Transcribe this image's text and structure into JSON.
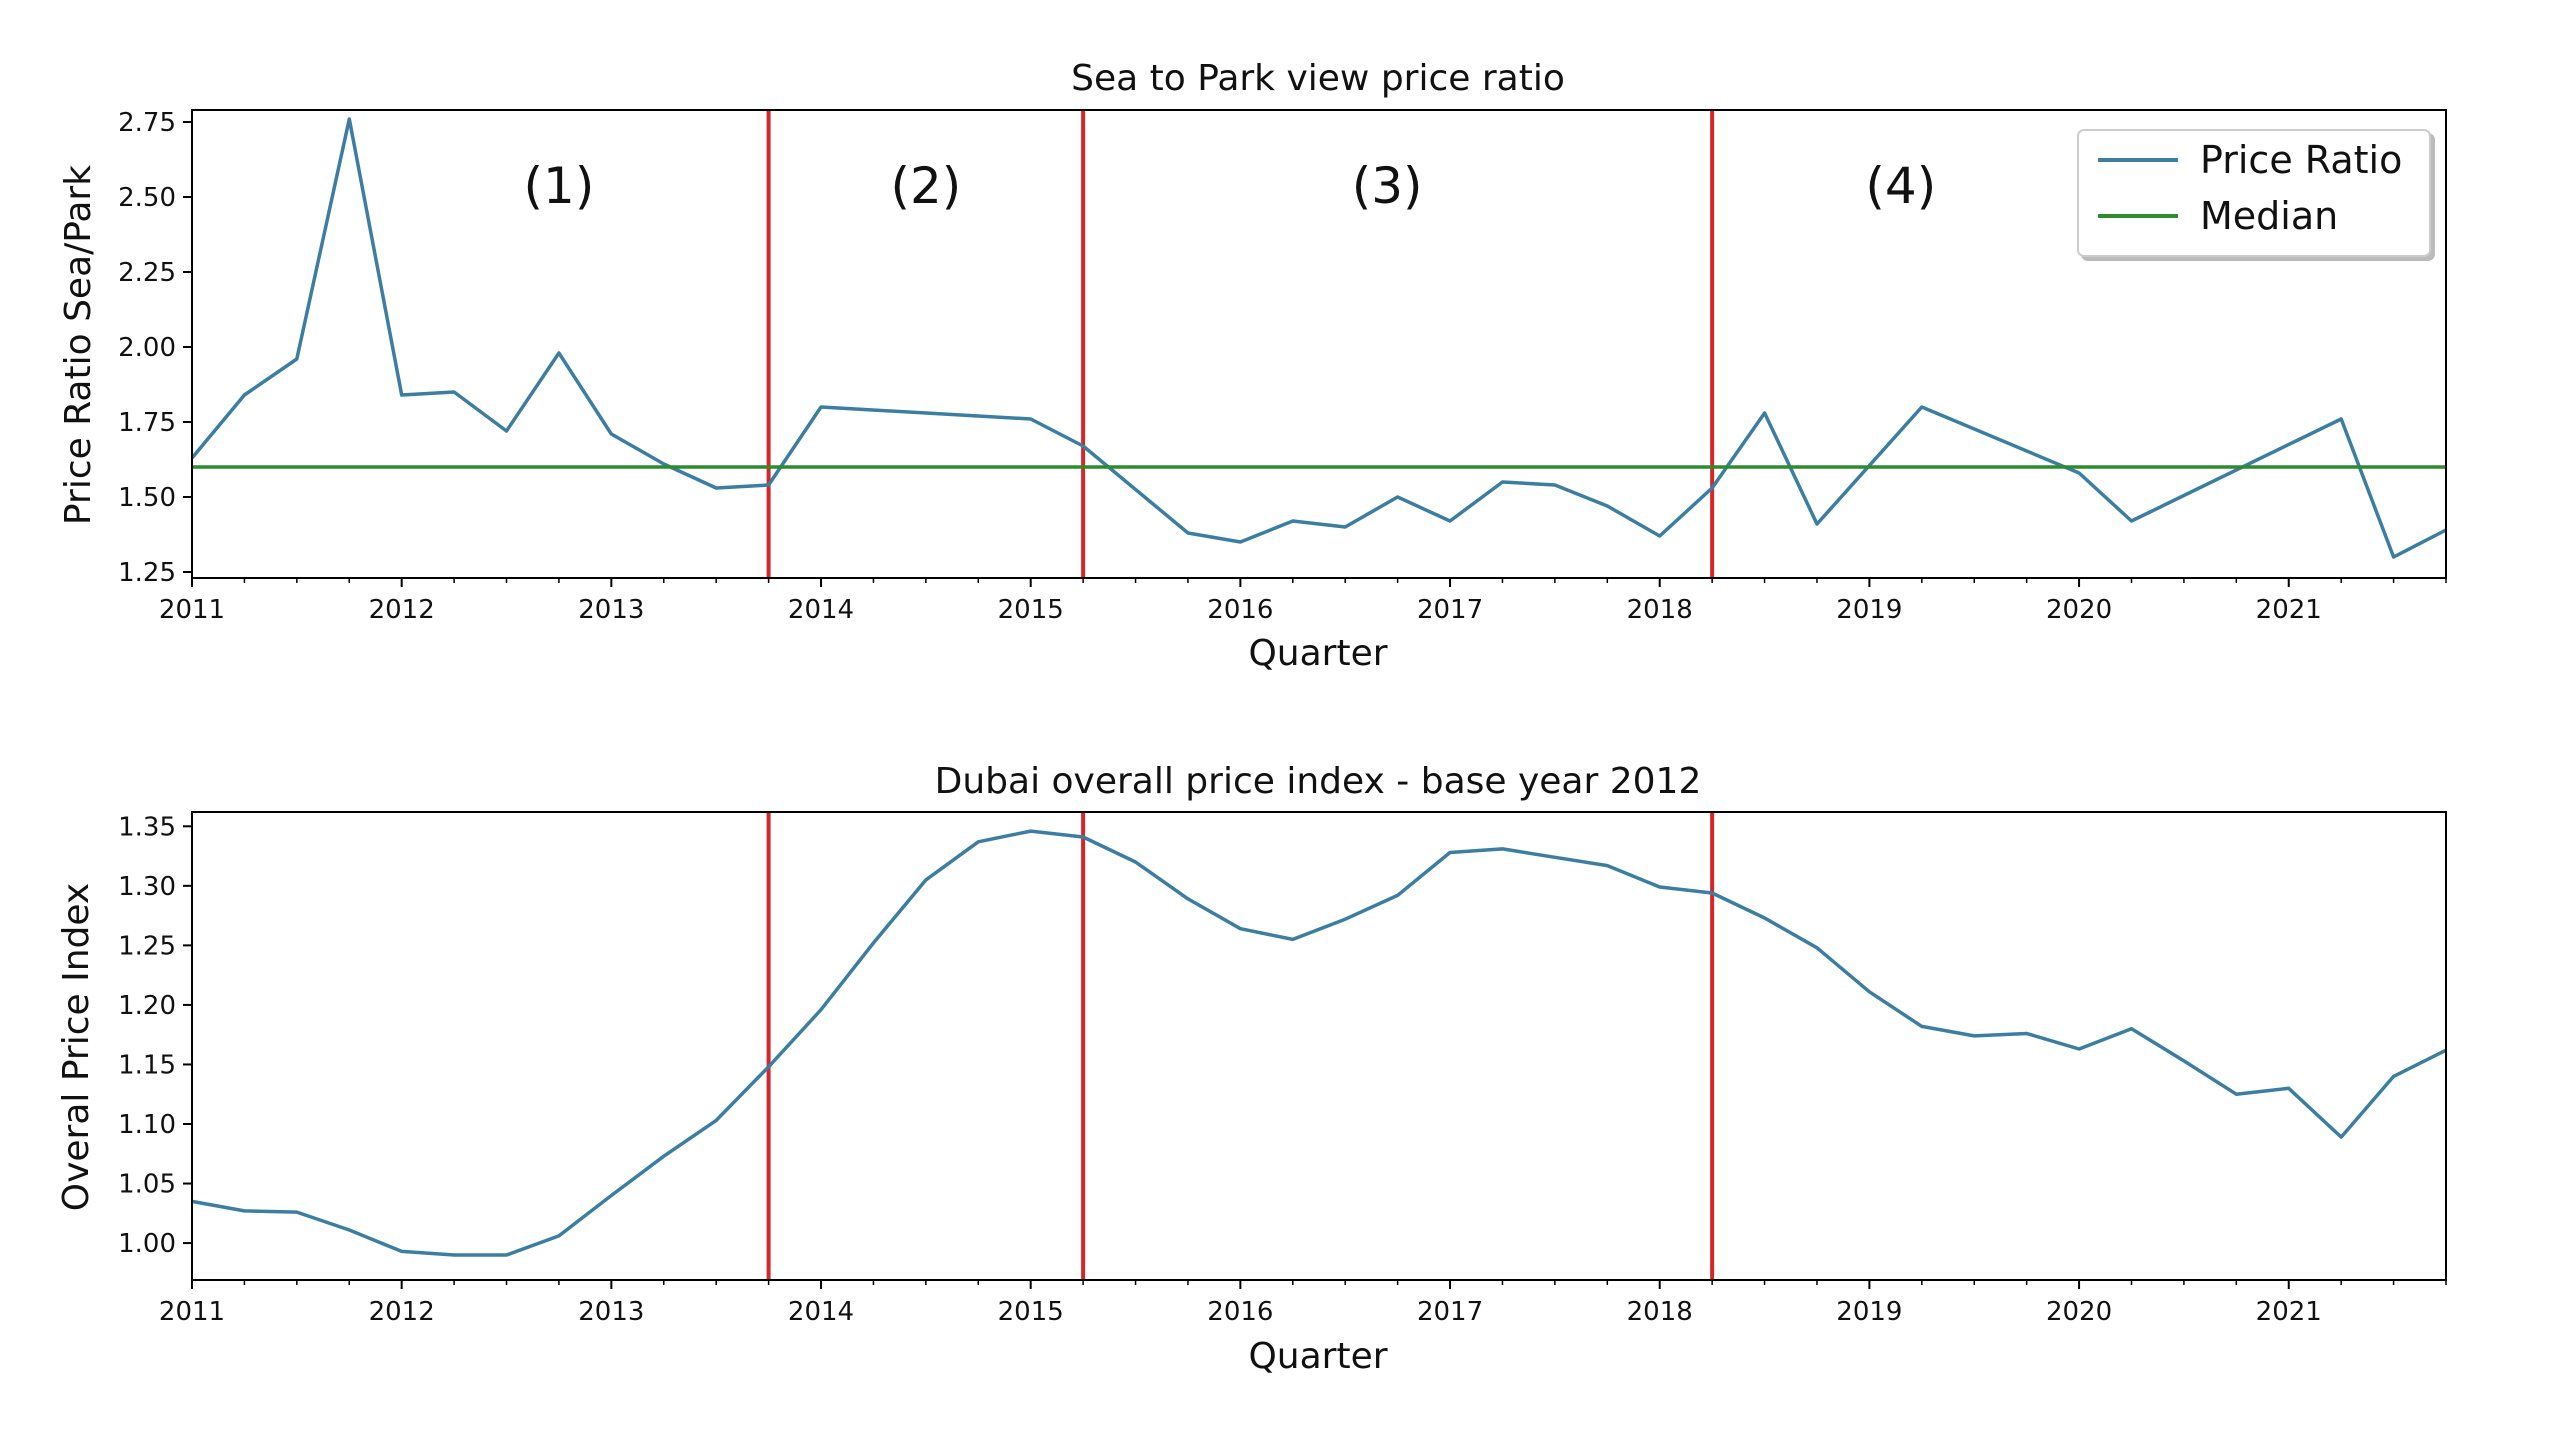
{
  "chart_data": [
    {
      "type": "line",
      "title": "Sea to Park view price ratio",
      "xlabel": "Quarter",
      "ylabel": "Price Ratio Sea/Park",
      "xlim": [
        2011.0,
        2021.75
      ],
      "ylim": [
        1.23,
        2.79
      ],
      "x_ticks": [
        2011,
        2012,
        2013,
        2014,
        2015,
        2016,
        2017,
        2018,
        2019,
        2020,
        2021
      ],
      "x_tick_labels": [
        "2011",
        "2012",
        "2013",
        "2014",
        "2015",
        "2016",
        "2017",
        "2018",
        "2019",
        "2020",
        "2021"
      ],
      "y_ticks": [
        1.25,
        1.5,
        1.75,
        2.0,
        2.25,
        2.5,
        2.75
      ],
      "y_tick_labels": [
        "1.25",
        "1.50",
        "1.75",
        "2.00",
        "2.25",
        "2.50",
        "2.75"
      ],
      "legend_position": "top-right",
      "series": [
        {
          "name": "Price Ratio",
          "color": "#3b7ea1",
          "x": [
            2011.0,
            2011.25,
            2011.5,
            2011.75,
            2012.0,
            2012.25,
            2012.5,
            2012.75,
            2013.0,
            2013.25,
            2013.5,
            2013.75,
            2014.0,
            2015.0,
            2015.25,
            2015.75,
            2016.0,
            2016.25,
            2016.5,
            2016.75,
            2017.0,
            2017.25,
            2017.5,
            2017.75,
            2018.0,
            2018.25,
            2018.5,
            2018.75,
            2019.25,
            2020.0,
            2020.25,
            2021.25,
            2021.5,
            2021.75
          ],
          "values": [
            1.63,
            1.84,
            1.96,
            2.76,
            1.84,
            1.85,
            1.72,
            1.98,
            1.71,
            1.61,
            1.53,
            1.54,
            1.8,
            1.76,
            1.67,
            1.38,
            1.35,
            1.42,
            1.4,
            1.5,
            1.42,
            1.55,
            1.54,
            1.47,
            1.37,
            1.53,
            1.78,
            1.41,
            1.8,
            1.58,
            1.42,
            1.76,
            1.3,
            1.39
          ]
        },
        {
          "name": "Median",
          "color": "#2e8b2e",
          "x": [
            2011.0,
            2021.75
          ],
          "values": [
            1.6,
            1.6
          ]
        }
      ],
      "vlines": {
        "color": "#d62728",
        "x": [
          2013.75,
          2015.25,
          2018.25
        ]
      },
      "annotations": [
        {
          "text": "(1)",
          "x": 2012.75,
          "y": 2.48
        },
        {
          "text": "(2)",
          "x": 2014.5,
          "y": 2.48
        },
        {
          "text": "(3)",
          "x": 2016.7,
          "y": 2.48
        },
        {
          "text": "(4)",
          "x": 2019.15,
          "y": 2.48
        }
      ]
    },
    {
      "type": "line",
      "title": "Dubai overall price index - base year 2012",
      "xlabel": "Quarter",
      "ylabel": "Overal Price Index",
      "xlim": [
        2011.0,
        2021.75
      ],
      "ylim": [
        0.969,
        1.362
      ],
      "x_ticks": [
        2011,
        2012,
        2013,
        2014,
        2015,
        2016,
        2017,
        2018,
        2019,
        2020,
        2021
      ],
      "x_tick_labels": [
        "2011",
        "2012",
        "2013",
        "2014",
        "2015",
        "2016",
        "2017",
        "2018",
        "2019",
        "2020",
        "2021"
      ],
      "y_ticks": [
        1.0,
        1.05,
        1.1,
        1.15,
        1.2,
        1.25,
        1.3,
        1.35
      ],
      "y_tick_labels": [
        "1.00",
        "1.05",
        "1.10",
        "1.15",
        "1.20",
        "1.25",
        "1.30",
        "1.35"
      ],
      "series": [
        {
          "name": "Overall Price Index",
          "color": "#3b7ea1",
          "x": [
            2011.0,
            2011.25,
            2011.5,
            2011.75,
            2012.0,
            2012.25,
            2012.5,
            2012.75,
            2013.0,
            2013.25,
            2013.5,
            2013.75,
            2014.0,
            2014.25,
            2014.5,
            2014.75,
            2015.0,
            2015.25,
            2015.5,
            2015.75,
            2016.0,
            2016.25,
            2016.5,
            2016.75,
            2017.0,
            2017.25,
            2017.5,
            2017.75,
            2018.0,
            2018.25,
            2018.5,
            2018.75,
            2019.0,
            2019.25,
            2019.5,
            2019.75,
            2020.0,
            2020.25,
            2020.5,
            2020.75,
            2021.0,
            2021.25,
            2021.5,
            2021.75
          ],
          "values": [
            1.035,
            1.027,
            1.026,
            1.011,
            0.993,
            0.99,
            0.99,
            1.006,
            1.04,
            1.073,
            1.103,
            1.148,
            1.196,
            1.252,
            1.305,
            1.337,
            1.346,
            1.341,
            1.32,
            1.289,
            1.264,
            1.255,
            1.272,
            1.292,
            1.328,
            1.331,
            1.324,
            1.317,
            1.299,
            1.294,
            1.273,
            1.248,
            1.211,
            1.182,
            1.174,
            1.176,
            1.163,
            1.18,
            1.153,
            1.125,
            1.13,
            1.089,
            1.14,
            1.162
          ]
        }
      ],
      "vlines": {
        "color": "#d62728",
        "x": [
          2013.75,
          2015.25,
          2018.25
        ]
      }
    }
  ]
}
